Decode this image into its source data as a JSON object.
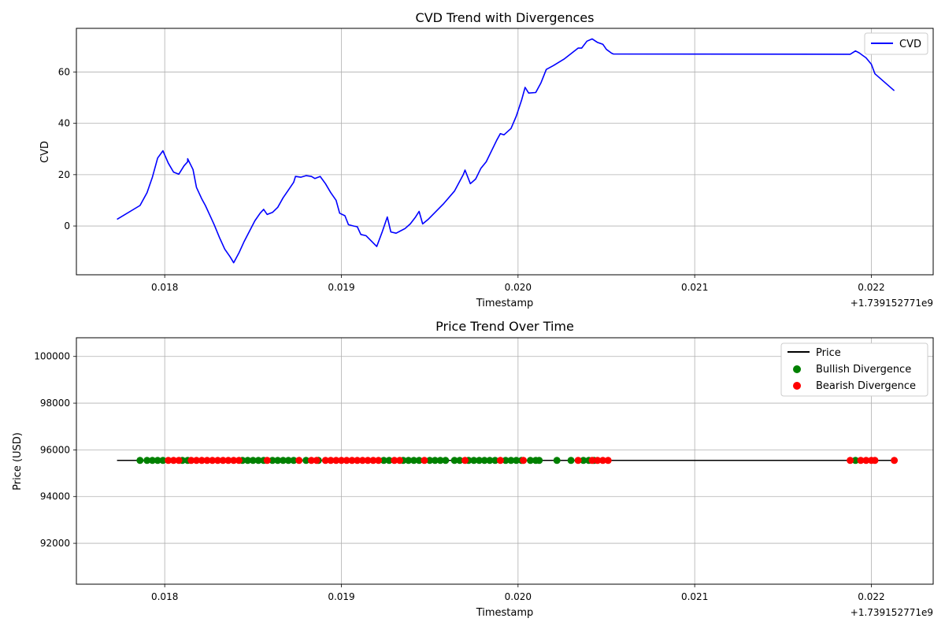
{
  "chart_data": [
    {
      "type": "line",
      "title": "CVD Trend with Divergences",
      "xlabel": "Timestamp",
      "ylabel": "CVD",
      "offset_label": "+1.739152771e9",
      "xlim": [
        0.0175,
        0.02235
      ],
      "ylim": [
        -19,
        77
      ],
      "xticks": [
        0.018,
        0.019,
        0.02,
        0.021,
        0.022
      ],
      "xtick_labels": [
        "0.018",
        "0.019",
        "0.020",
        "0.021",
        "0.022"
      ],
      "yticks": [
        0,
        20,
        40,
        60
      ],
      "ytick_labels": [
        "0",
        "20",
        "40",
        "60"
      ],
      "grid": true,
      "legend_position": "top-right",
      "series": [
        {
          "name": "CVD",
          "color": "#0000ff",
          "points": [
            [
              0.01773,
              2.6
            ],
            [
              0.01786,
              8.0
            ],
            [
              0.0179,
              13.0
            ],
            [
              0.01793,
              19.0
            ],
            [
              0.01796,
              26.5
            ],
            [
              0.01799,
              29.3
            ],
            [
              0.01802,
              24.5
            ],
            [
              0.01805,
              21.0
            ],
            [
              0.01808,
              20.2
            ],
            [
              0.01811,
              23.5
            ],
            [
              0.01813,
              25.0
            ],
            [
              0.01813,
              26.2
            ],
            [
              0.01816,
              22.0
            ],
            [
              0.01818,
              15.0
            ],
            [
              0.01821,
              10.5
            ],
            [
              0.01823,
              8.0
            ],
            [
              0.01826,
              3.5
            ],
            [
              0.01828,
              0.5
            ],
            [
              0.01831,
              -4.5
            ],
            [
              0.01834,
              -9.0
            ],
            [
              0.01837,
              -12.0
            ],
            [
              0.01839,
              -14.3
            ],
            [
              0.01842,
              -10.5
            ],
            [
              0.01845,
              -6.0
            ],
            [
              0.01851,
              2.0
            ],
            [
              0.01854,
              5.0
            ],
            [
              0.01856,
              6.5
            ],
            [
              0.01858,
              4.5
            ],
            [
              0.01861,
              5.3
            ],
            [
              0.01864,
              7.3
            ],
            [
              0.01867,
              11.0
            ],
            [
              0.0187,
              14.0
            ],
            [
              0.01873,
              17.0
            ],
            [
              0.01874,
              19.3
            ],
            [
              0.01877,
              19.0
            ],
            [
              0.0188,
              19.6
            ],
            [
              0.01883,
              19.3
            ],
            [
              0.01885,
              18.5
            ],
            [
              0.01888,
              19.3
            ],
            [
              0.01891,
              16.5
            ],
            [
              0.01894,
              13.0
            ],
            [
              0.01897,
              10.0
            ],
            [
              0.01899,
              5.0
            ],
            [
              0.01902,
              4.0
            ],
            [
              0.01904,
              0.5
            ],
            [
              0.01907,
              0.0
            ],
            [
              0.01909,
              -0.3
            ],
            [
              0.01911,
              -3.3
            ],
            [
              0.01914,
              -3.8
            ],
            [
              0.0192,
              -8.0
            ],
            [
              0.01923,
              -2.5
            ],
            [
              0.01926,
              3.5
            ],
            [
              0.01928,
              -2.3
            ],
            [
              0.01931,
              -2.8
            ],
            [
              0.01936,
              -1.0
            ],
            [
              0.01939,
              0.8
            ],
            [
              0.01942,
              3.5
            ],
            [
              0.01944,
              5.7
            ],
            [
              0.01946,
              0.8
            ],
            [
              0.01949,
              2.5
            ],
            [
              0.01958,
              8.8
            ],
            [
              0.01964,
              13.6
            ],
            [
              0.01969,
              20.0
            ],
            [
              0.0197,
              21.8
            ],
            [
              0.01973,
              16.5
            ],
            [
              0.01976,
              18.3
            ],
            [
              0.01979,
              22.5
            ],
            [
              0.01982,
              25.0
            ],
            [
              0.01988,
              33.5
            ],
            [
              0.0199,
              36.0
            ],
            [
              0.01992,
              35.5
            ],
            [
              0.01996,
              38.0
            ],
            [
              0.01999,
              42.8
            ],
            [
              0.02002,
              49.0
            ],
            [
              0.02004,
              54.0
            ],
            [
              0.02006,
              51.8
            ],
            [
              0.0201,
              52.0
            ],
            [
              0.02013,
              55.8
            ],
            [
              0.02016,
              61.0
            ],
            [
              0.0202,
              62.5
            ],
            [
              0.02026,
              65.0
            ],
            [
              0.02034,
              69.3
            ],
            [
              0.02036,
              69.3
            ],
            [
              0.02039,
              72.0
            ],
            [
              0.02042,
              72.9
            ],
            [
              0.02045,
              71.5
            ],
            [
              0.02048,
              70.8
            ],
            [
              0.0205,
              68.8
            ],
            [
              0.02053,
              67.3
            ],
            [
              0.02054,
              67.0
            ],
            [
              0.02188,
              66.9
            ],
            [
              0.02191,
              68.2
            ],
            [
              0.02193,
              67.5
            ],
            [
              0.02197,
              65.5
            ],
            [
              0.022,
              63.0
            ],
            [
              0.02202,
              59.3
            ],
            [
              0.02213,
              52.7
            ]
          ]
        }
      ]
    },
    {
      "type": "scatter",
      "title": "Price Trend Over Time",
      "xlabel": "Timestamp",
      "ylabel": "Price (USD)",
      "offset_label": "+1.739152771e9",
      "xlim": [
        0.0175,
        0.02235
      ],
      "ylim": [
        90250,
        100800
      ],
      "xticks": [
        0.018,
        0.019,
        0.02,
        0.021,
        0.022
      ],
      "xtick_labels": [
        "0.018",
        "0.019",
        "0.020",
        "0.021",
        "0.022"
      ],
      "yticks": [
        92000,
        94000,
        96000,
        98000,
        100000
      ],
      "ytick_labels": [
        "92000",
        "94000",
        "96000",
        "98000",
        "100000"
      ],
      "grid": true,
      "legend_position": "top-right",
      "price_line": {
        "name": "Price",
        "color": "#000000",
        "value": 95550,
        "x_range": [
          0.01773,
          0.02213
        ]
      },
      "series": [
        {
          "name": "Bullish Divergence",
          "color": "#008000",
          "y": 95550,
          "x": [
            0.01786,
            0.0179,
            0.01793,
            0.01796,
            0.01799,
            0.0181,
            0.01813,
            0.01844,
            0.01847,
            0.0185,
            0.01853,
            0.01856,
            0.01861,
            0.01864,
            0.01867,
            0.0187,
            0.01873,
            0.0188,
            0.01887,
            0.01924,
            0.01927,
            0.01935,
            0.01938,
            0.01941,
            0.01944,
            0.0195,
            0.01953,
            0.01956,
            0.01959,
            0.01964,
            0.01967,
            0.01972,
            0.01975,
            0.01978,
            0.01981,
            0.01984,
            0.01987,
            0.01993,
            0.01996,
            0.01999,
            0.02002,
            0.02007,
            0.0201,
            0.02012,
            0.02022,
            0.0203,
            0.02037,
            0.0204,
            0.02043,
            0.02191
          ]
        },
        {
          "name": "Bearish Divergence",
          "color": "#ff0000",
          "y": 95550,
          "x": [
            0.01802,
            0.01805,
            0.01808,
            0.01815,
            0.01818,
            0.01821,
            0.01824,
            0.01827,
            0.0183,
            0.01833,
            0.01836,
            0.01839,
            0.01842,
            0.01858,
            0.01876,
            0.01883,
            0.01886,
            0.01891,
            0.01894,
            0.01897,
            0.019,
            0.01903,
            0.01906,
            0.01909,
            0.01912,
            0.01915,
            0.01918,
            0.01921,
            0.0193,
            0.01933,
            0.01947,
            0.0197,
            0.0199,
            0.02003,
            0.02034,
            0.02042,
            0.02045,
            0.02048,
            0.02051,
            0.02188,
            0.02194,
            0.02197,
            0.022,
            0.02202,
            0.02213
          ]
        }
      ]
    }
  ]
}
